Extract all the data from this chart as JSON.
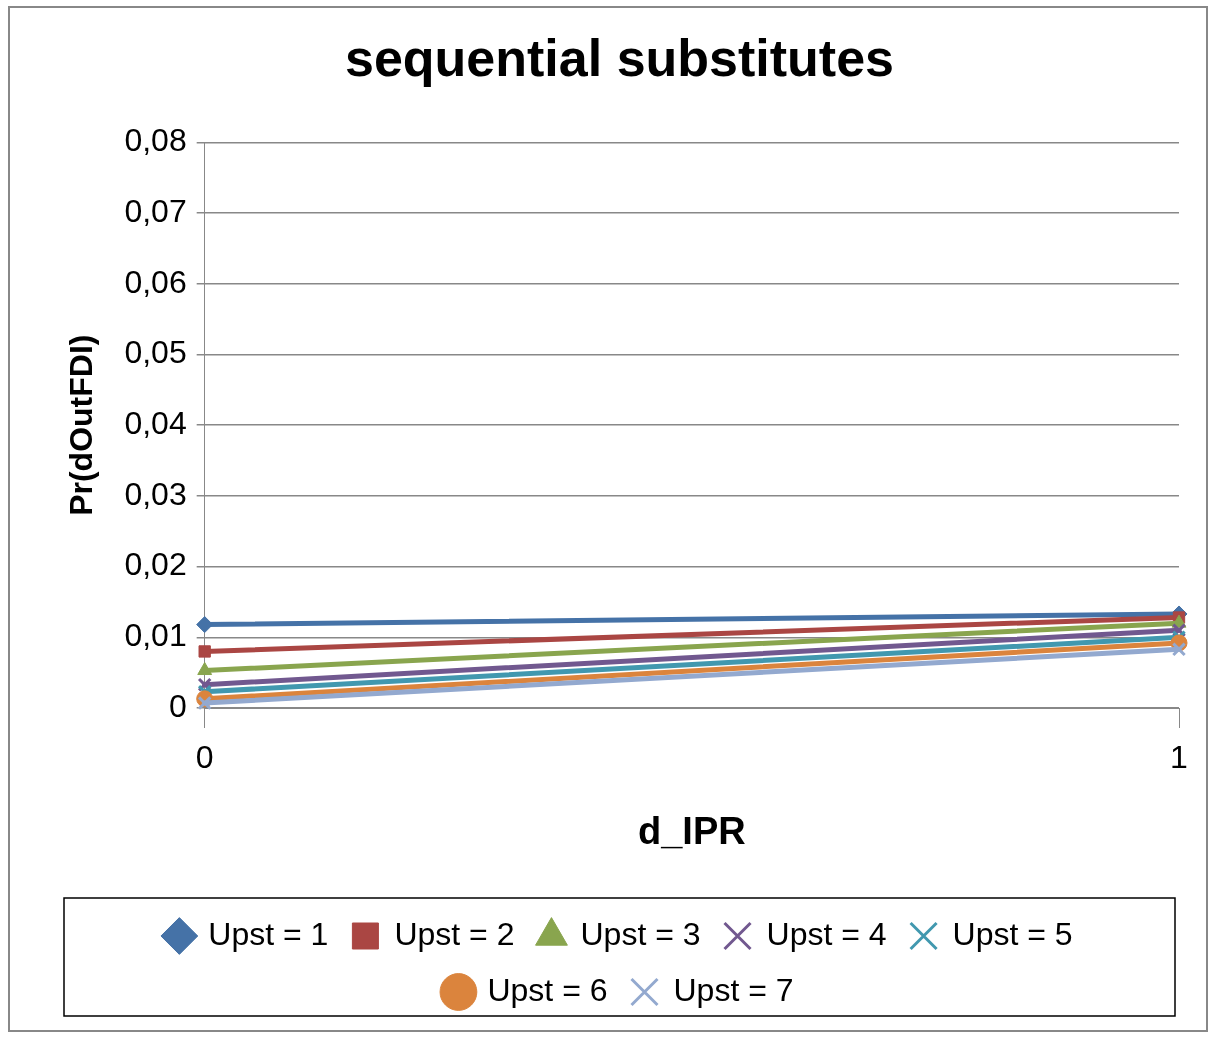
{
  "chart_data": {
    "type": "line",
    "title": "sequential substitutes",
    "xlabel": "d_IPR",
    "ylabel": "Pr(dOutFDI)",
    "x": [
      0,
      1
    ],
    "xlim": [
      0,
      1
    ],
    "xticks": [
      0,
      1
    ],
    "ylim": [
      0,
      0.08
    ],
    "yticks": [
      {
        "value": 0,
        "label": "0"
      },
      {
        "value": 0.01,
        "label": "0,01"
      },
      {
        "value": 0.02,
        "label": "0,02"
      },
      {
        "value": 0.03,
        "label": "0,03"
      },
      {
        "value": 0.04,
        "label": "0,04"
      },
      {
        "value": 0.05,
        "label": "0,05"
      },
      {
        "value": 0.06,
        "label": "0,06"
      },
      {
        "value": 0.07,
        "label": "0,07"
      },
      {
        "value": 0.08,
        "label": "0,08"
      }
    ],
    "grid": "y",
    "legend": "bottom",
    "line_style": "solid",
    "series": [
      {
        "name": "Upst = 1",
        "color": "#4572a7",
        "marker": "diamond",
        "values": [
          0.0118,
          0.0133
        ]
      },
      {
        "name": "Upst = 2",
        "color": "#aa4643",
        "marker": "square",
        "values": [
          0.008,
          0.0128
        ]
      },
      {
        "name": "Upst = 3",
        "color": "#89a54e",
        "marker": "triangle",
        "values": [
          0.0053,
          0.012
        ]
      },
      {
        "name": "Upst = 4",
        "color": "#71588f",
        "marker": "cross",
        "values": [
          0.0033,
          0.011
        ]
      },
      {
        "name": "Upst = 5",
        "color": "#4198af",
        "marker": "cross",
        "values": [
          0.0023,
          0.01
        ]
      },
      {
        "name": "Upst = 6",
        "color": "#db843d",
        "marker": "circle",
        "values": [
          0.0013,
          0.0092
        ]
      },
      {
        "name": "Upst = 7",
        "color": "#93a9cf",
        "marker": "cross",
        "values": [
          0.0007,
          0.0083
        ]
      }
    ]
  }
}
